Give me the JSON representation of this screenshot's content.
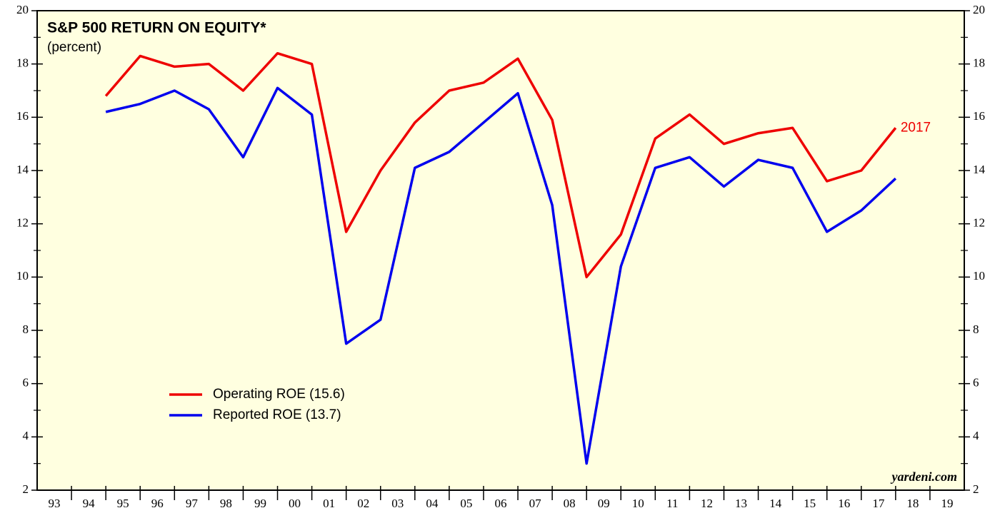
{
  "chart_data": {
    "type": "line",
    "title": "S&P 500 RETURN ON EQUITY*",
    "subtitle": "(percent)",
    "annotation": "2017",
    "source": "yardeni.com",
    "categories": [
      "93",
      "94",
      "95",
      "96",
      "97",
      "98",
      "99",
      "00",
      "01",
      "02",
      "03",
      "04",
      "05",
      "06",
      "07",
      "08",
      "09",
      "10",
      "11",
      "12",
      "13",
      "14",
      "15",
      "16",
      "17",
      "18",
      "19"
    ],
    "x": [
      1994,
      1995,
      1996,
      1997,
      1998,
      1999,
      2000,
      2001,
      2002,
      2003,
      2004,
      2005,
      2006,
      2007,
      2008,
      2009,
      2010,
      2011,
      2012,
      2013,
      2014,
      2015,
      2016,
      2017
    ],
    "xlim": [
      1992,
      2019
    ],
    "series": [
      {
        "name": "Operating ROE (15.6)",
        "color": "#ee0000",
        "values": [
          16.8,
          18.3,
          17.9,
          18.0,
          17.0,
          18.4,
          18.0,
          11.7,
          14.0,
          15.8,
          17.0,
          17.3,
          18.2,
          15.9,
          10.0,
          11.6,
          15.2,
          16.1,
          15.0,
          15.4,
          15.6,
          13.6,
          14.0,
          15.6
        ]
      },
      {
        "name": "Reported ROE (13.7)",
        "color": "#0000ee",
        "values": [
          16.2,
          16.5,
          17.0,
          16.3,
          14.5,
          17.1,
          16.1,
          7.5,
          8.4,
          14.1,
          14.7,
          15.8,
          16.9,
          12.7,
          3.0,
          10.4,
          14.1,
          14.5,
          13.4,
          14.4,
          14.1,
          11.7,
          12.5,
          13.7
        ]
      }
    ],
    "ylim": [
      2,
      20
    ],
    "yticks": [
      2,
      4,
      6,
      8,
      10,
      12,
      14,
      16,
      18,
      20
    ],
    "y2lim": [
      2,
      20
    ],
    "y2ticks": [
      2,
      4,
      6,
      8,
      10,
      12,
      14,
      16,
      18,
      20
    ],
    "background": "#ffffe0"
  }
}
